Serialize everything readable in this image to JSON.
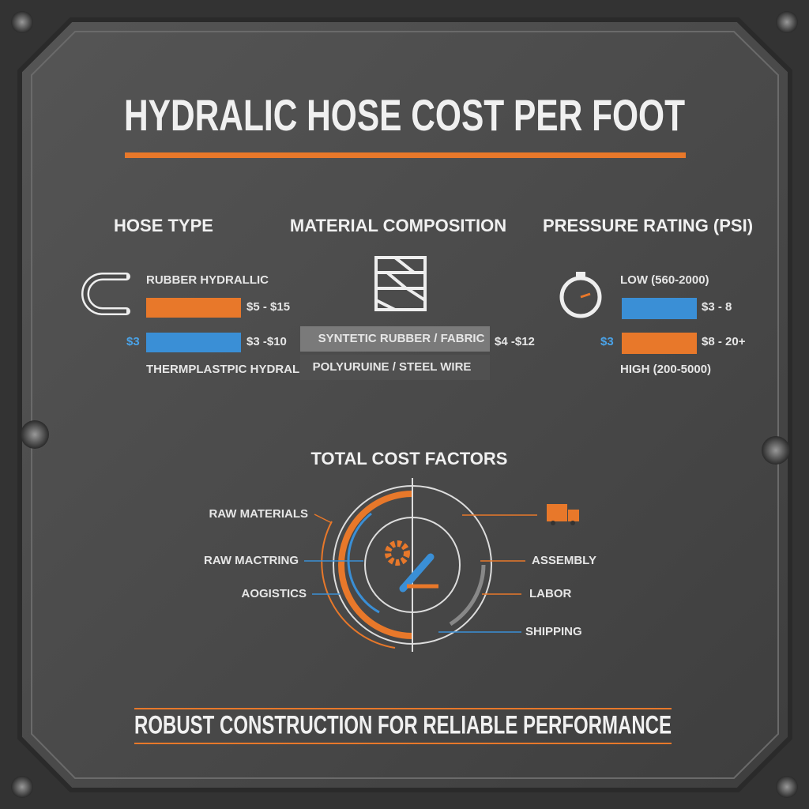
{
  "title": "HYDRALIC HOSE COST PER FOOT",
  "hose_type": {
    "heading": "HOSE TYPE",
    "rubber": {
      "name": "RUBBER HYDRALLIC",
      "range": "$5 - $15"
    },
    "thermoplastic": {
      "name": "THERMPLASTPIC HYDRALIC",
      "range": "$3 -$10",
      "side_label": "$3"
    }
  },
  "material": {
    "heading": "MATERIAL COMPOSITION",
    "rows": [
      "SYNTETIC RUBBER / FABRIC",
      "POLYURUINE / STEEL WIRE"
    ],
    "range": "$4 -$12"
  },
  "pressure": {
    "heading": "PRESSURE RATING (PSI)",
    "low": {
      "name": "LOW (560-2000)",
      "range": "$3 - 8"
    },
    "high": {
      "name": "HIGH (200-5000)",
      "range": "$8 - 20+",
      "side_label": "$3"
    }
  },
  "cost_factors": {
    "heading": "TOTAL COST FACTORS",
    "left": [
      "RAW MATERIALS",
      "RAW MACTRING",
      "AOGISTICS"
    ],
    "right": [
      "ASSEMBLY",
      "LABOR",
      "SHIPPING"
    ]
  },
  "footer": "ROBUST CONSTRUCTION FOR RELIABLE PERFORMANCE"
}
